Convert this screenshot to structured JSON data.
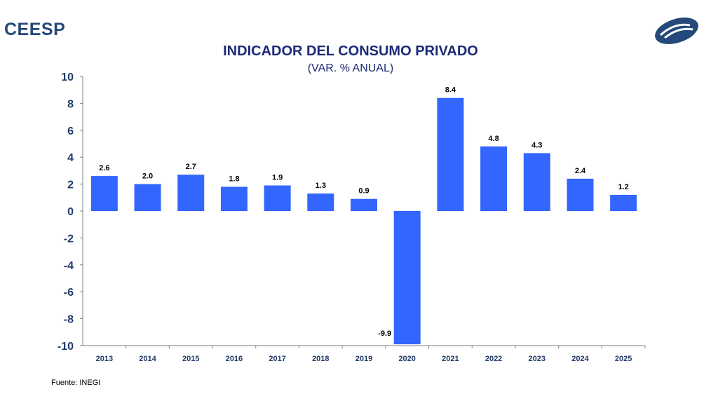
{
  "brand": "CEESP",
  "source": "Fuente: INEGI",
  "colors": {
    "bar": "#3366ff",
    "axis_text": "#1f3a68",
    "title": "#1c2a78",
    "logo": "#24497a"
  },
  "chart_data": {
    "type": "bar",
    "title": "INDICADOR DEL CONSUMO PRIVADO",
    "subtitle": "(VAR. % ANUAL)",
    "categories": [
      "2013",
      "2014",
      "2015",
      "2016",
      "2017",
      "2018",
      "2019",
      "2020",
      "2021",
      "2022",
      "2023",
      "2024",
      "2025"
    ],
    "values": [
      2.6,
      2.0,
      2.7,
      1.8,
      1.9,
      1.3,
      0.9,
      -9.9,
      8.4,
      4.8,
      4.3,
      2.4,
      1.2
    ],
    "value_labels": [
      "2.6",
      "2.0",
      "2.7",
      "1.8",
      "1.9",
      "1.3",
      "0.9",
      "-9.9",
      "8.4",
      "4.8",
      "4.3",
      "2.4",
      "1.2"
    ],
    "ylim": [
      -10,
      10
    ],
    "yticks": [
      10,
      8,
      6,
      4,
      2,
      0,
      -2,
      -4,
      -6,
      -8,
      -10
    ],
    "xlabel": "",
    "ylabel": "",
    "grid": false,
    "legend": "none"
  }
}
